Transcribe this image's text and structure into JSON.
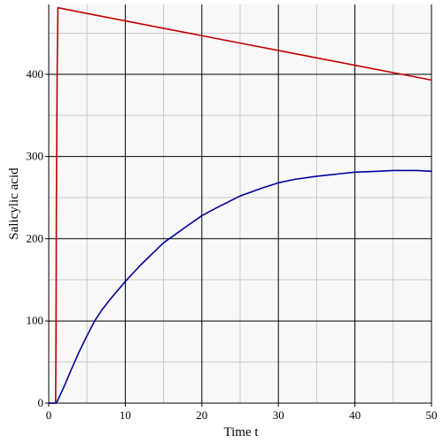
{
  "chart_data": {
    "type": "line",
    "title": "",
    "xlabel": "Time t",
    "ylabel": "Salicylic acid",
    "xlim": [
      0,
      50
    ],
    "ylim": [
      0,
      485
    ],
    "x_ticks": [
      0,
      10,
      20,
      30,
      40,
      50
    ],
    "y_ticks": [
      0,
      100,
      200,
      300,
      400
    ],
    "grid": true,
    "legend": "none",
    "colors": {
      "background": "#f8f8f8",
      "major_grid": "#000000",
      "minor_grid": "#c8c8c8",
      "series_red": "#c00000",
      "series_blue": "#0000a0"
    },
    "series": [
      {
        "color": "#c00000",
        "x": [
          0,
          0.9,
          0.95,
          1.0,
          1.05,
          1.1,
          1.2,
          5,
          10,
          15,
          20,
          25,
          30,
          35,
          40,
          45,
          50
        ],
        "y": [
          0,
          0,
          80,
          240,
          320,
          400,
          481,
          474,
          465,
          456,
          447,
          438,
          429,
          420,
          411,
          402,
          393
        ]
      },
      {
        "color": "#0000a0",
        "x": [
          0,
          1,
          2,
          3,
          4,
          5,
          6,
          7,
          8,
          10,
          12,
          15,
          18,
          20,
          22,
          25,
          28,
          30,
          32,
          35,
          38,
          40,
          43,
          45,
          48,
          50
        ],
        "y": [
          0,
          0,
          20,
          42,
          63,
          82,
          100,
          114,
          126,
          148,
          168,
          195,
          215,
          228,
          238,
          252,
          262,
          268,
          272,
          276,
          279,
          281,
          282,
          283,
          283,
          282
        ]
      }
    ]
  }
}
